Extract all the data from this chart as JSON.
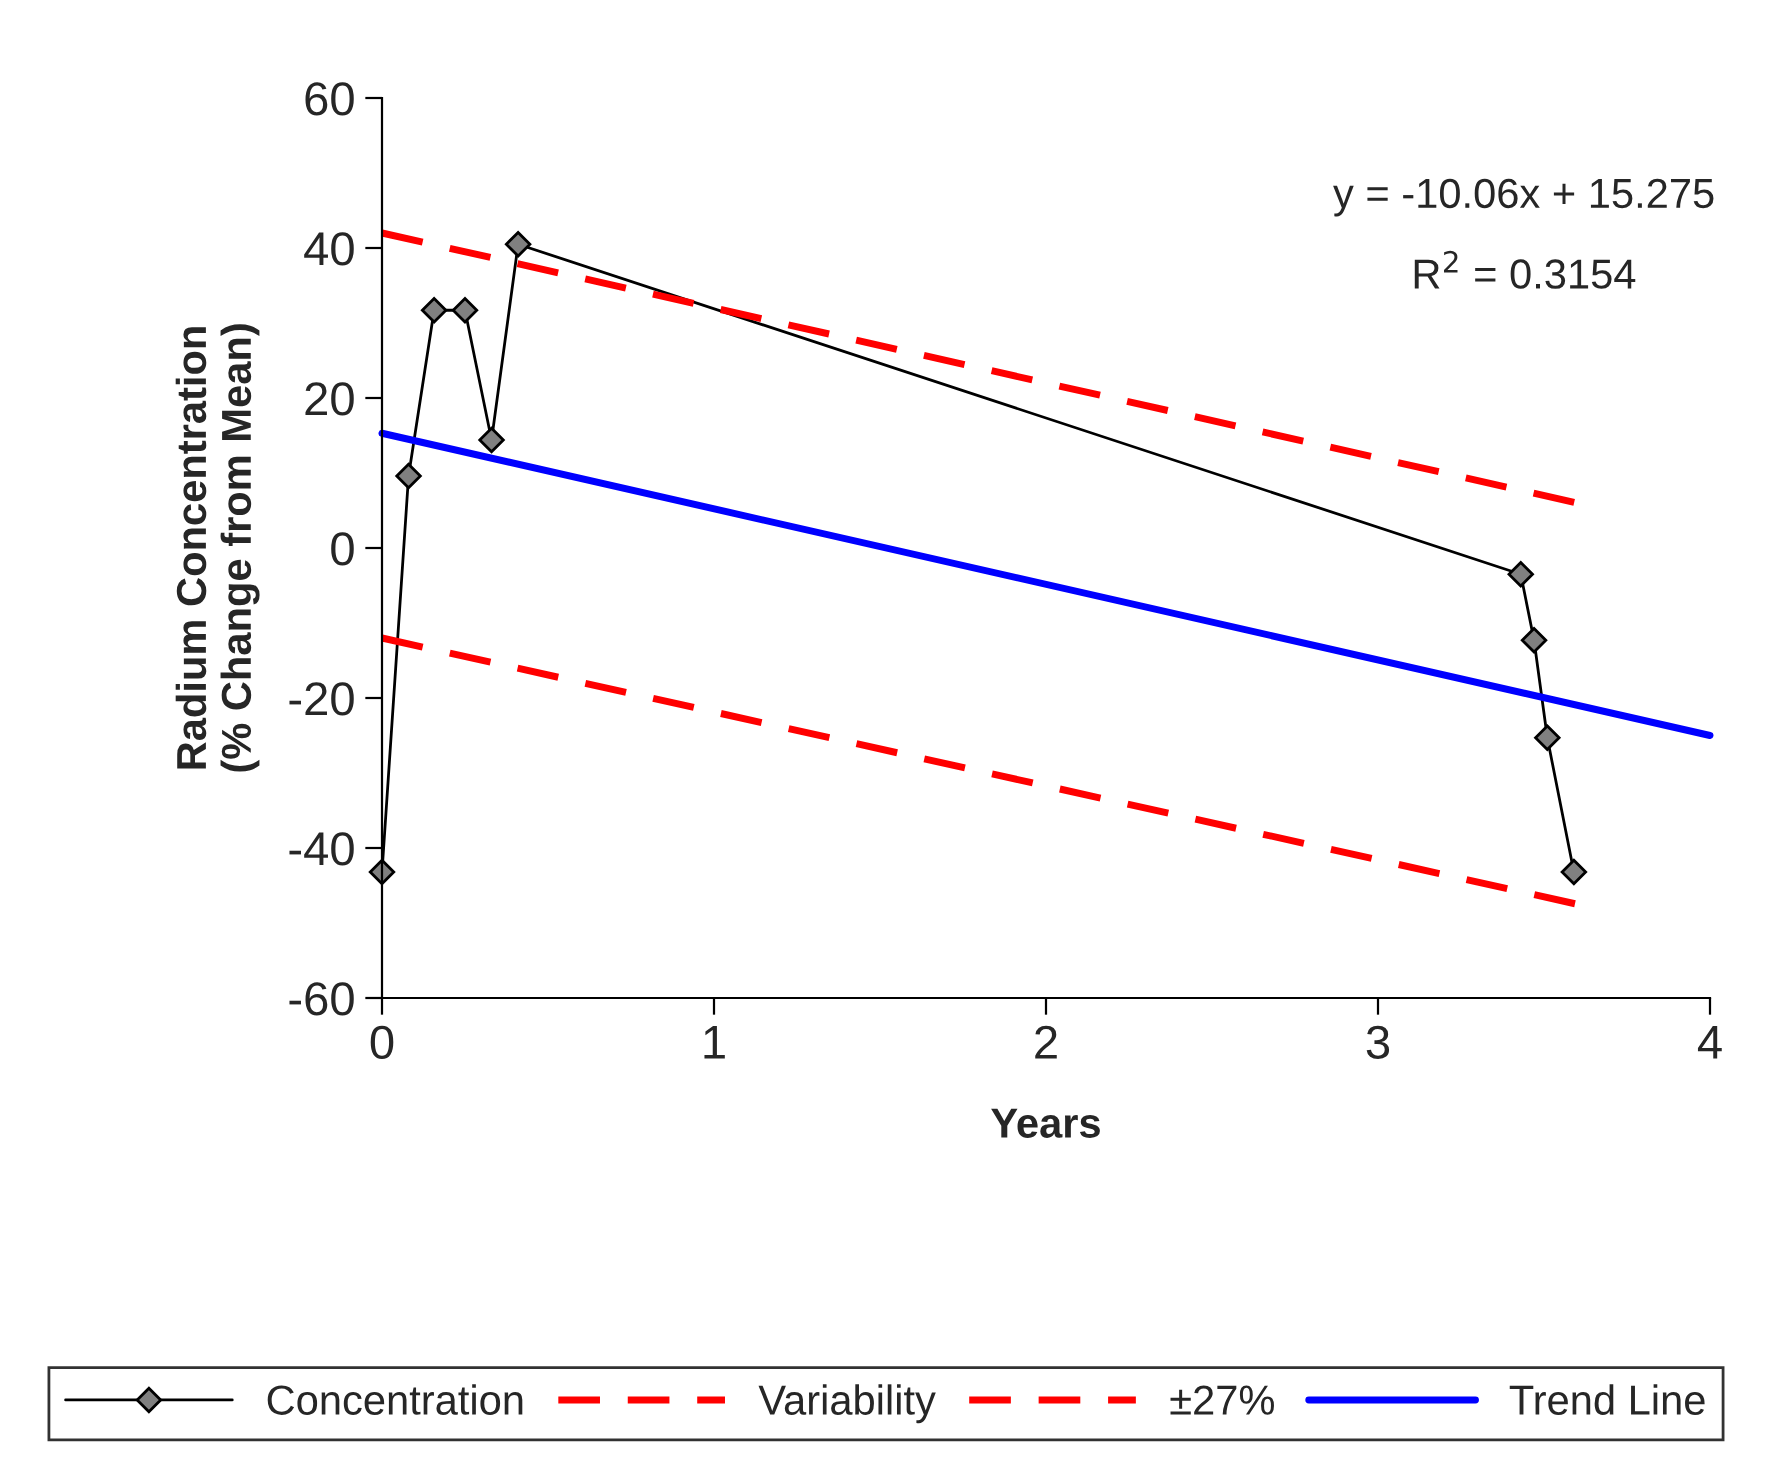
{
  "chart_data": {
    "type": "line",
    "xlabel": "Years",
    "ylabel": "Radium Concentration\n(% Change from Mean)",
    "series": [
      {
        "name": "Concentration",
        "color": "#000000",
        "marker": "diamond",
        "x": [
          0,
          0.08,
          0.157,
          0.25,
          0.33,
          0.41,
          3.43,
          3.47,
          3.51,
          3.59
        ],
        "values": [
          -43.2,
          9.6,
          31.7,
          31.7,
          14.4,
          40.5,
          -3.5,
          -12.3,
          -25.3,
          -43.2
        ]
      },
      {
        "name": "Variability",
        "color": "#ff0000",
        "line_style": "dashed",
        "x": [
          0,
          3.6
        ],
        "values": [
          42,
          6
        ]
      },
      {
        "name": "±27%",
        "color": "#ff0000",
        "line_style": "dashed",
        "x": [
          0,
          3.6
        ],
        "values": [
          -12,
          -47.5
        ]
      },
      {
        "name": "Trend Line",
        "color": "#0000ff",
        "x": [
          0,
          4
        ],
        "values": [
          15.3,
          -25.0
        ]
      }
    ],
    "xlim": [
      0,
      4
    ],
    "xticks": [
      0,
      1,
      2,
      3,
      4
    ],
    "ylim": [
      -60,
      60
    ],
    "yticks": [
      -60,
      -40,
      -20,
      0,
      20,
      40,
      60
    ],
    "grid": false,
    "legend": "bottom",
    "annotations": [
      "y = -10.06x + 15.275",
      "R$^{2}$ = 0.3154"
    ]
  }
}
